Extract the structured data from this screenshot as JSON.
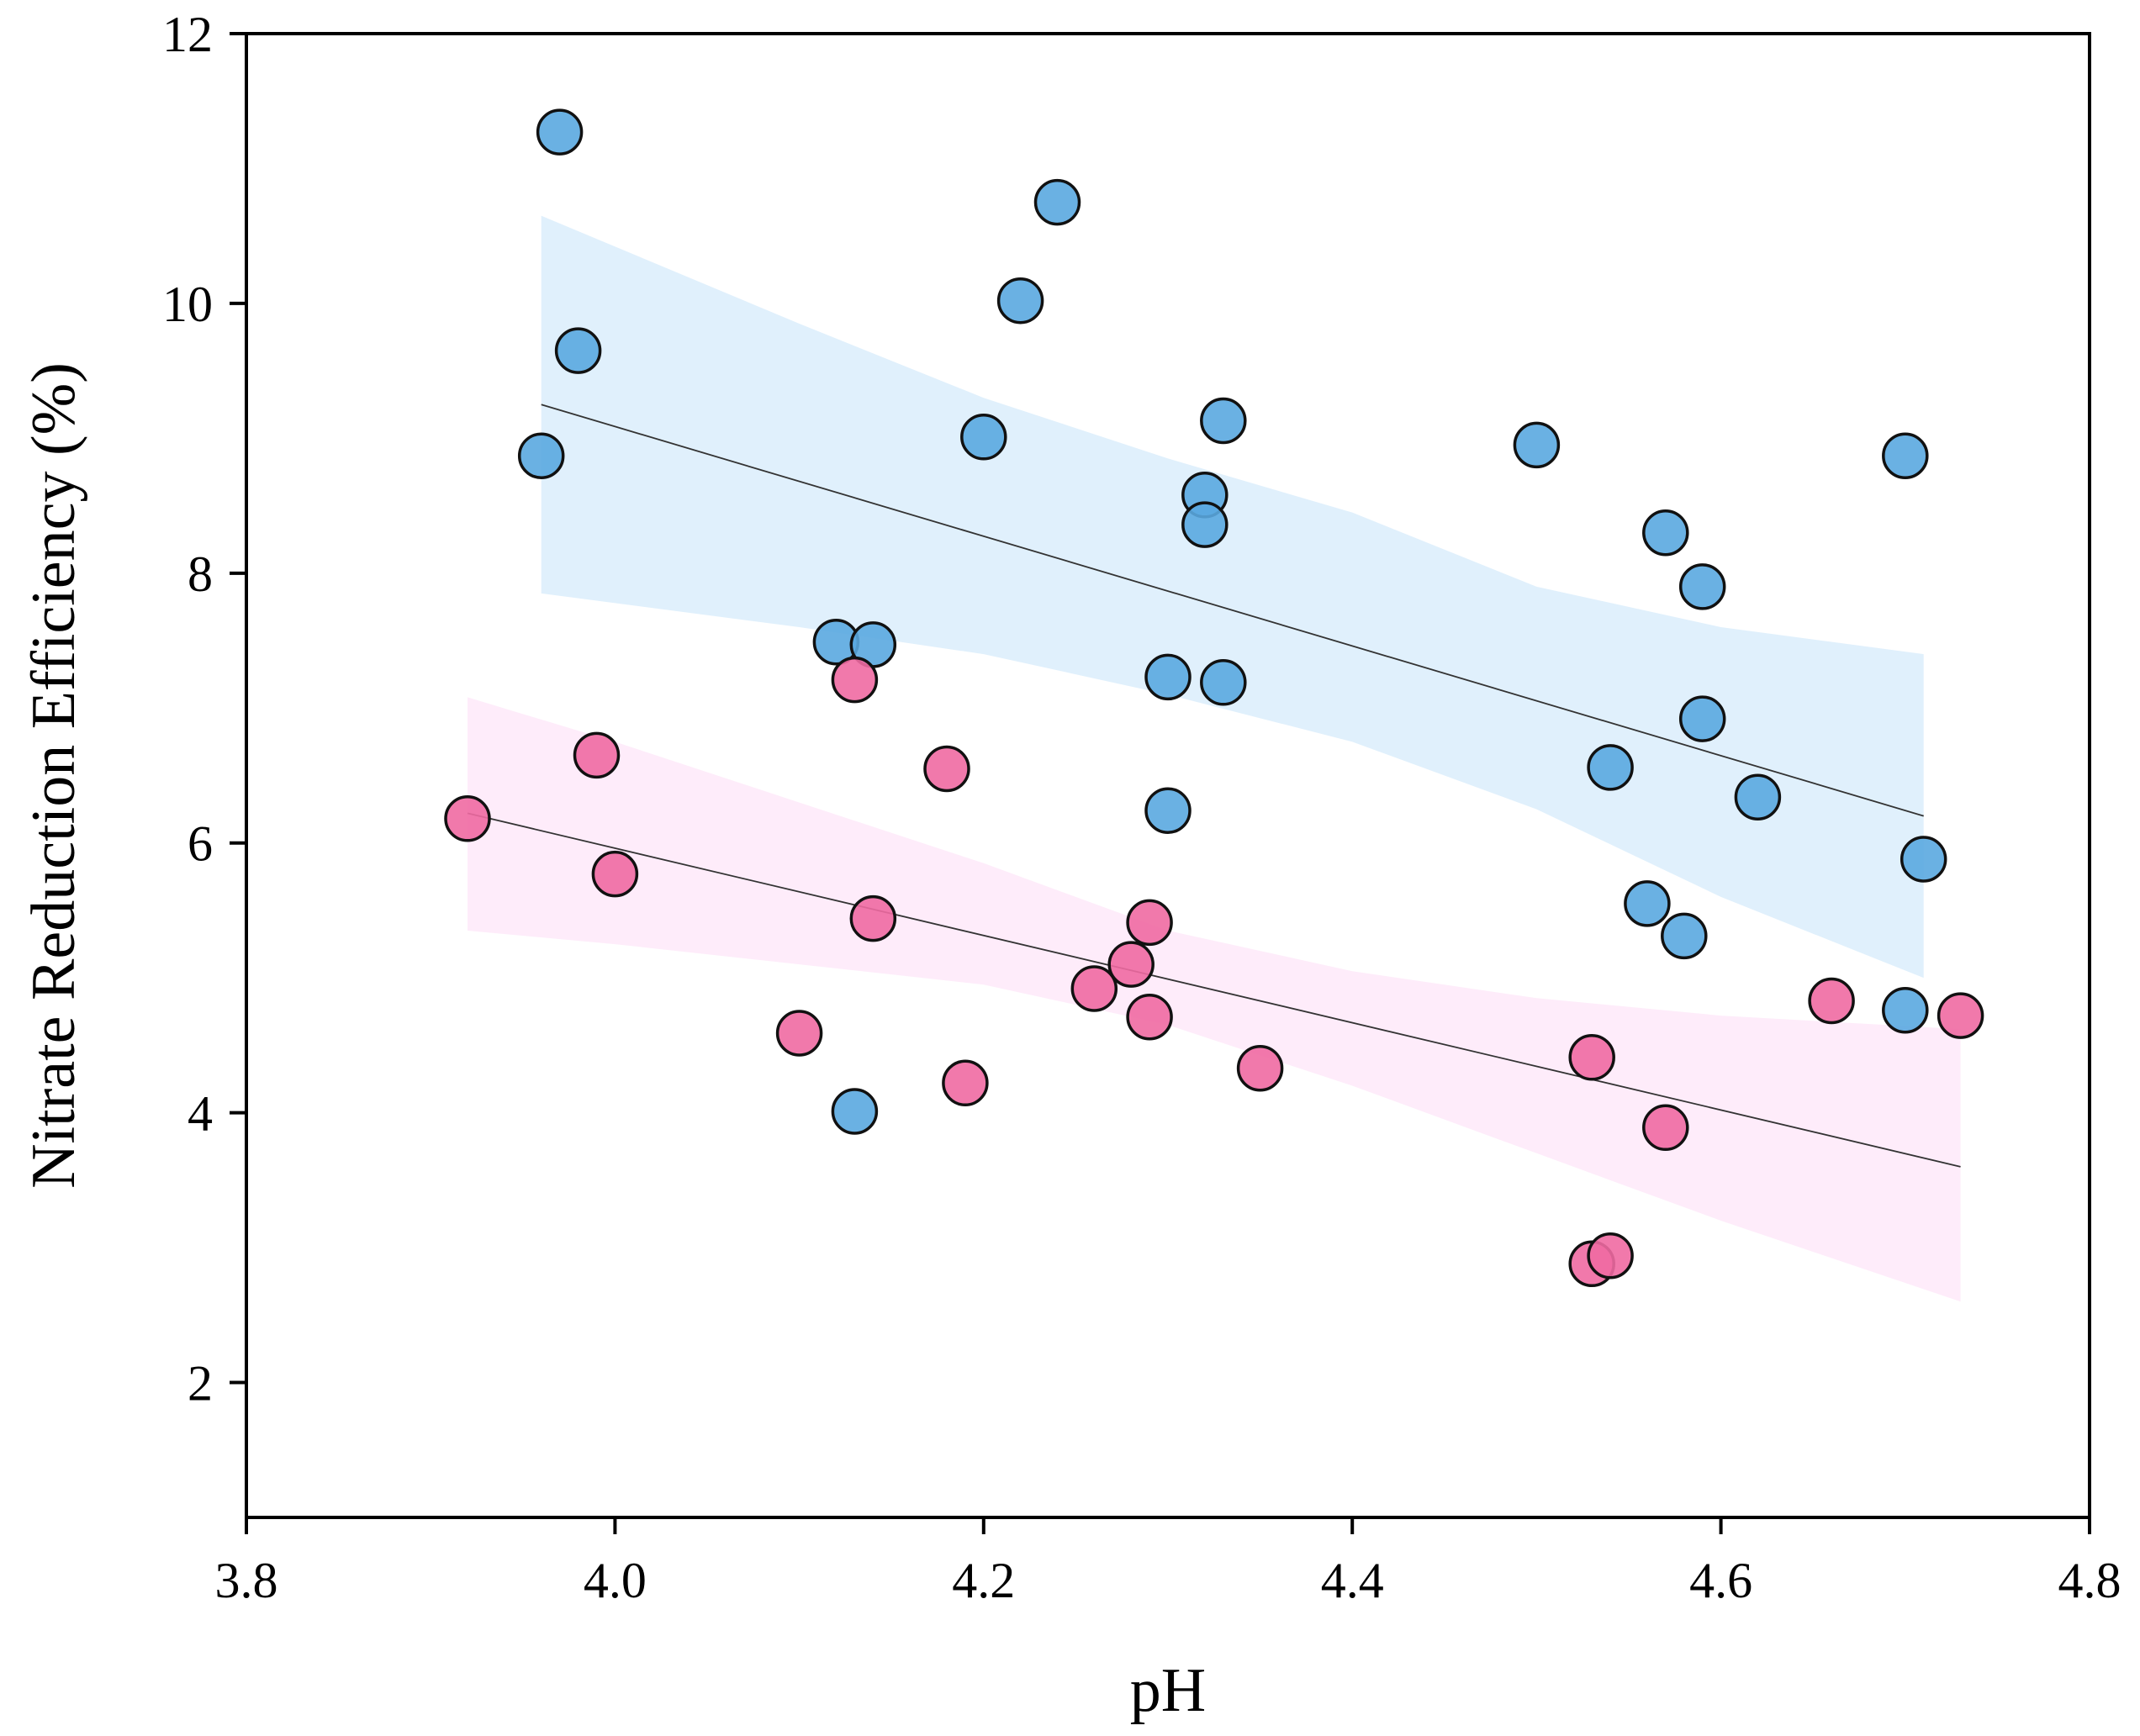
{
  "chart_data": {
    "type": "scatter",
    "xlabel": "pH",
    "ylabel": "Nitrate Reduction Efficiency (%)",
    "xlim": [
      3.8,
      4.8
    ],
    "ylim": [
      1,
      12
    ],
    "xticks": [
      "3.8",
      "4.0",
      "4.2",
      "4.4",
      "4.6",
      "4.8"
    ],
    "xtick_values": [
      3.8,
      4.0,
      4.2,
      4.4,
      4.6,
      4.8
    ],
    "yticks": [
      "2",
      "4",
      "6",
      "8",
      "10",
      "12"
    ],
    "ytick_values": [
      2,
      4,
      6,
      8,
      10,
      12
    ],
    "grid": false,
    "series": [
      {
        "name": "blue group",
        "color": "#5aa8e0",
        "band_color": "#d6ebfb",
        "points": [
          [
            3.97,
            11.27
          ],
          [
            3.96,
            8.87
          ],
          [
            3.98,
            9.65
          ],
          [
            4.12,
            7.49
          ],
          [
            4.14,
            7.47
          ],
          [
            4.13,
            4.01
          ],
          [
            4.2,
            9.01
          ],
          [
            4.22,
            10.02
          ],
          [
            4.24,
            10.75
          ],
          [
            4.3,
            7.23
          ],
          [
            4.3,
            6.24
          ],
          [
            4.32,
            8.58
          ],
          [
            4.32,
            8.36
          ],
          [
            4.33,
            9.13
          ],
          [
            4.33,
            7.19
          ],
          [
            4.5,
            8.95
          ],
          [
            4.54,
            6.56
          ],
          [
            4.56,
            5.55
          ],
          [
            4.57,
            8.3
          ],
          [
            4.58,
            5.31
          ],
          [
            4.59,
            7.9
          ],
          [
            4.59,
            6.92
          ],
          [
            4.62,
            6.34
          ],
          [
            4.7,
            8.87
          ],
          [
            4.7,
            4.76
          ],
          [
            4.71,
            5.88
          ]
        ],
        "fit": {
          "x": [
            3.96,
            4.71
          ],
          "y": [
            9.25,
            6.2
          ]
        },
        "band_upper": [
          [
            3.96,
            10.65
          ],
          [
            4.1,
            9.85
          ],
          [
            4.2,
            9.3
          ],
          [
            4.3,
            8.85
          ],
          [
            4.4,
            8.45
          ],
          [
            4.5,
            7.9
          ],
          [
            4.6,
            7.6
          ],
          [
            4.71,
            7.4
          ]
        ],
        "band_lower": [
          [
            3.96,
            7.85
          ],
          [
            4.1,
            7.6
          ],
          [
            4.2,
            7.4
          ],
          [
            4.3,
            7.1
          ],
          [
            4.4,
            6.75
          ],
          [
            4.5,
            6.25
          ],
          [
            4.6,
            5.6
          ],
          [
            4.71,
            5.0
          ]
        ]
      },
      {
        "name": "pink group",
        "color": "#f06aa2",
        "band_color": "#fde6f8",
        "points": [
          [
            3.92,
            6.18
          ],
          [
            3.99,
            6.65
          ],
          [
            4.0,
            5.77
          ],
          [
            4.13,
            7.21
          ],
          [
            4.14,
            5.44
          ],
          [
            4.18,
            6.55
          ],
          [
            4.1,
            4.59
          ],
          [
            4.19,
            4.22
          ],
          [
            4.26,
            4.92
          ],
          [
            4.28,
            5.1
          ],
          [
            4.29,
            5.41
          ],
          [
            4.29,
            4.71
          ],
          [
            4.35,
            4.33
          ],
          [
            4.53,
            4.41
          ],
          [
            4.53,
            2.88
          ],
          [
            4.54,
            2.94
          ],
          [
            4.57,
            3.89
          ],
          [
            4.66,
            4.83
          ],
          [
            4.73,
            4.72
          ]
        ],
        "fit": {
          "x": [
            3.92,
            4.73
          ],
          "y": [
            6.22,
            3.6
          ]
        },
        "band_upper": [
          [
            3.92,
            7.08
          ],
          [
            4.0,
            6.75
          ],
          [
            4.1,
            6.3
          ],
          [
            4.2,
            5.85
          ],
          [
            4.3,
            5.35
          ],
          [
            4.4,
            5.05
          ],
          [
            4.5,
            4.85
          ],
          [
            4.6,
            4.72
          ],
          [
            4.73,
            4.62
          ]
        ],
        "band_lower": [
          [
            3.92,
            5.35
          ],
          [
            4.0,
            5.25
          ],
          [
            4.1,
            5.1
          ],
          [
            4.2,
            4.95
          ],
          [
            4.3,
            4.65
          ],
          [
            4.4,
            4.2
          ],
          [
            4.5,
            3.7
          ],
          [
            4.6,
            3.2
          ],
          [
            4.73,
            2.6
          ]
        ]
      }
    ]
  }
}
